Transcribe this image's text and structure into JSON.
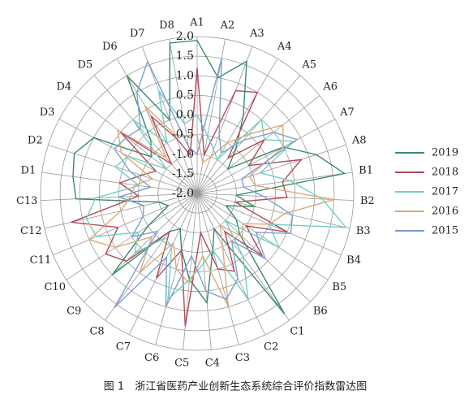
{
  "chart_data": {
    "type": "radar",
    "caption": "图 1　浙江省医药产业创新生态系统综合评价指数雷达图",
    "categories": [
      "A1",
      "A2",
      "A3",
      "A4",
      "A5",
      "A6",
      "A7",
      "A8",
      "B1",
      "B2",
      "B3",
      "B4",
      "B5",
      "B6",
      "C1",
      "C2",
      "C3",
      "C4",
      "C5",
      "C6",
      "C7",
      "C8",
      "C9",
      "C10",
      "C11",
      "C12",
      "C13",
      "D1",
      "D2",
      "D3",
      "D4",
      "D5",
      "D6",
      "D7",
      "D8"
    ],
    "rlim": [
      -2.0,
      2.0
    ],
    "rticks": [
      {
        "value": -2.0,
        "label": "-2.0"
      },
      {
        "value": -1.5,
        "label": "-1.5"
      },
      {
        "value": -1.0,
        "label": "-1.0"
      },
      {
        "value": -0.5,
        "label": "-0.5"
      },
      {
        "value": 0.0,
        "label": "0.0"
      },
      {
        "value": 0.5,
        "label": "0.5"
      },
      {
        "value": 1.0,
        "label": "1.0"
      },
      {
        "value": 1.5,
        "label": "1.5"
      },
      {
        "value": 2.0,
        "label": "2.0"
      }
    ],
    "series": [
      {
        "name": "2019",
        "color": "#3a8a6a",
        "values": [
          1.9,
          1.0,
          1.6,
          0.3,
          -0.5,
          -1.0,
          0.5,
          1.2,
          1.8,
          -1.0,
          -0.5,
          -1.2,
          -0.8,
          -0.5,
          1.8,
          -1.0,
          -0.5,
          0.8,
          0.2,
          -0.5,
          -1.0,
          -0.8,
          1.0,
          -0.5,
          -1.2,
          -1.0,
          1.1,
          1.2,
          1.3,
          1.0,
          -0.5,
          -0.2,
          1.5,
          0.0,
          1.9
        ]
      },
      {
        "name": "2018",
        "color": "#b24a55",
        "values": [
          1.2,
          -1.0,
          0.8,
          1.0,
          -0.8,
          0.2,
          -0.5,
          0.8,
          0.2,
          0.3,
          -1.0,
          0.5,
          -0.5,
          0.3,
          -0.8,
          0.2,
          0.0,
          -1.0,
          1.4,
          -0.5,
          0.4,
          -0.8,
          0.5,
          0.8,
          0.2,
          1.3,
          -0.5,
          0.0,
          -0.5,
          -0.8,
          0.5,
          -1.0,
          0.3,
          -0.5,
          -1.0
        ]
      },
      {
        "name": "2017",
        "color": "#6fcfc8",
        "values": [
          0.0,
          -0.5,
          -0.8,
          -1.0,
          0.5,
          0.2,
          0.8,
          -0.3,
          0.4,
          1.2,
          1.9,
          0.0,
          0.5,
          -1.0,
          0.0,
          1.0,
          -0.5,
          -0.2,
          0.2,
          0.8,
          -0.5,
          -0.6,
          0.2,
          -0.2,
          0.8,
          0.9,
          0.6,
          -0.5,
          0.2,
          0.0,
          -1.0,
          0.5,
          -0.5,
          0.8,
          -0.2
        ]
      },
      {
        "name": "2016",
        "color": "#d9aa7a",
        "values": [
          -0.5,
          -1.2,
          -1.0,
          -0.5,
          0.0,
          0.8,
          0.5,
          -0.6,
          -0.5,
          1.5,
          0.3,
          0.0,
          -0.6,
          -0.4,
          -1.0,
          -0.5,
          1.0,
          -0.4,
          0.3,
          0.0,
          -0.6,
          0.5,
          -0.4,
          0.5,
          1.0,
          0.0,
          -0.3,
          -0.4,
          -0.8,
          0.2,
          0.6,
          -0.8,
          0.6,
          -0.4,
          -0.5
        ]
      },
      {
        "name": "2015",
        "color": "#7d9fd0",
        "values": [
          -1.0,
          1.5,
          -0.4,
          -0.8,
          -0.2,
          0.5,
          0.9,
          -0.8,
          -0.8,
          -0.3,
          0.5,
          0.6,
          -0.2,
          0.4,
          -0.5,
          0.4,
          0.8,
          0.5,
          -0.4,
          1.0,
          -0.2,
          1.6,
          -0.6,
          0.0,
          -0.5,
          -0.6,
          0.0,
          -0.8,
          -0.2,
          0.4,
          0.3,
          0.2,
          1.0,
          1.6,
          -0.8
        ]
      }
    ]
  }
}
